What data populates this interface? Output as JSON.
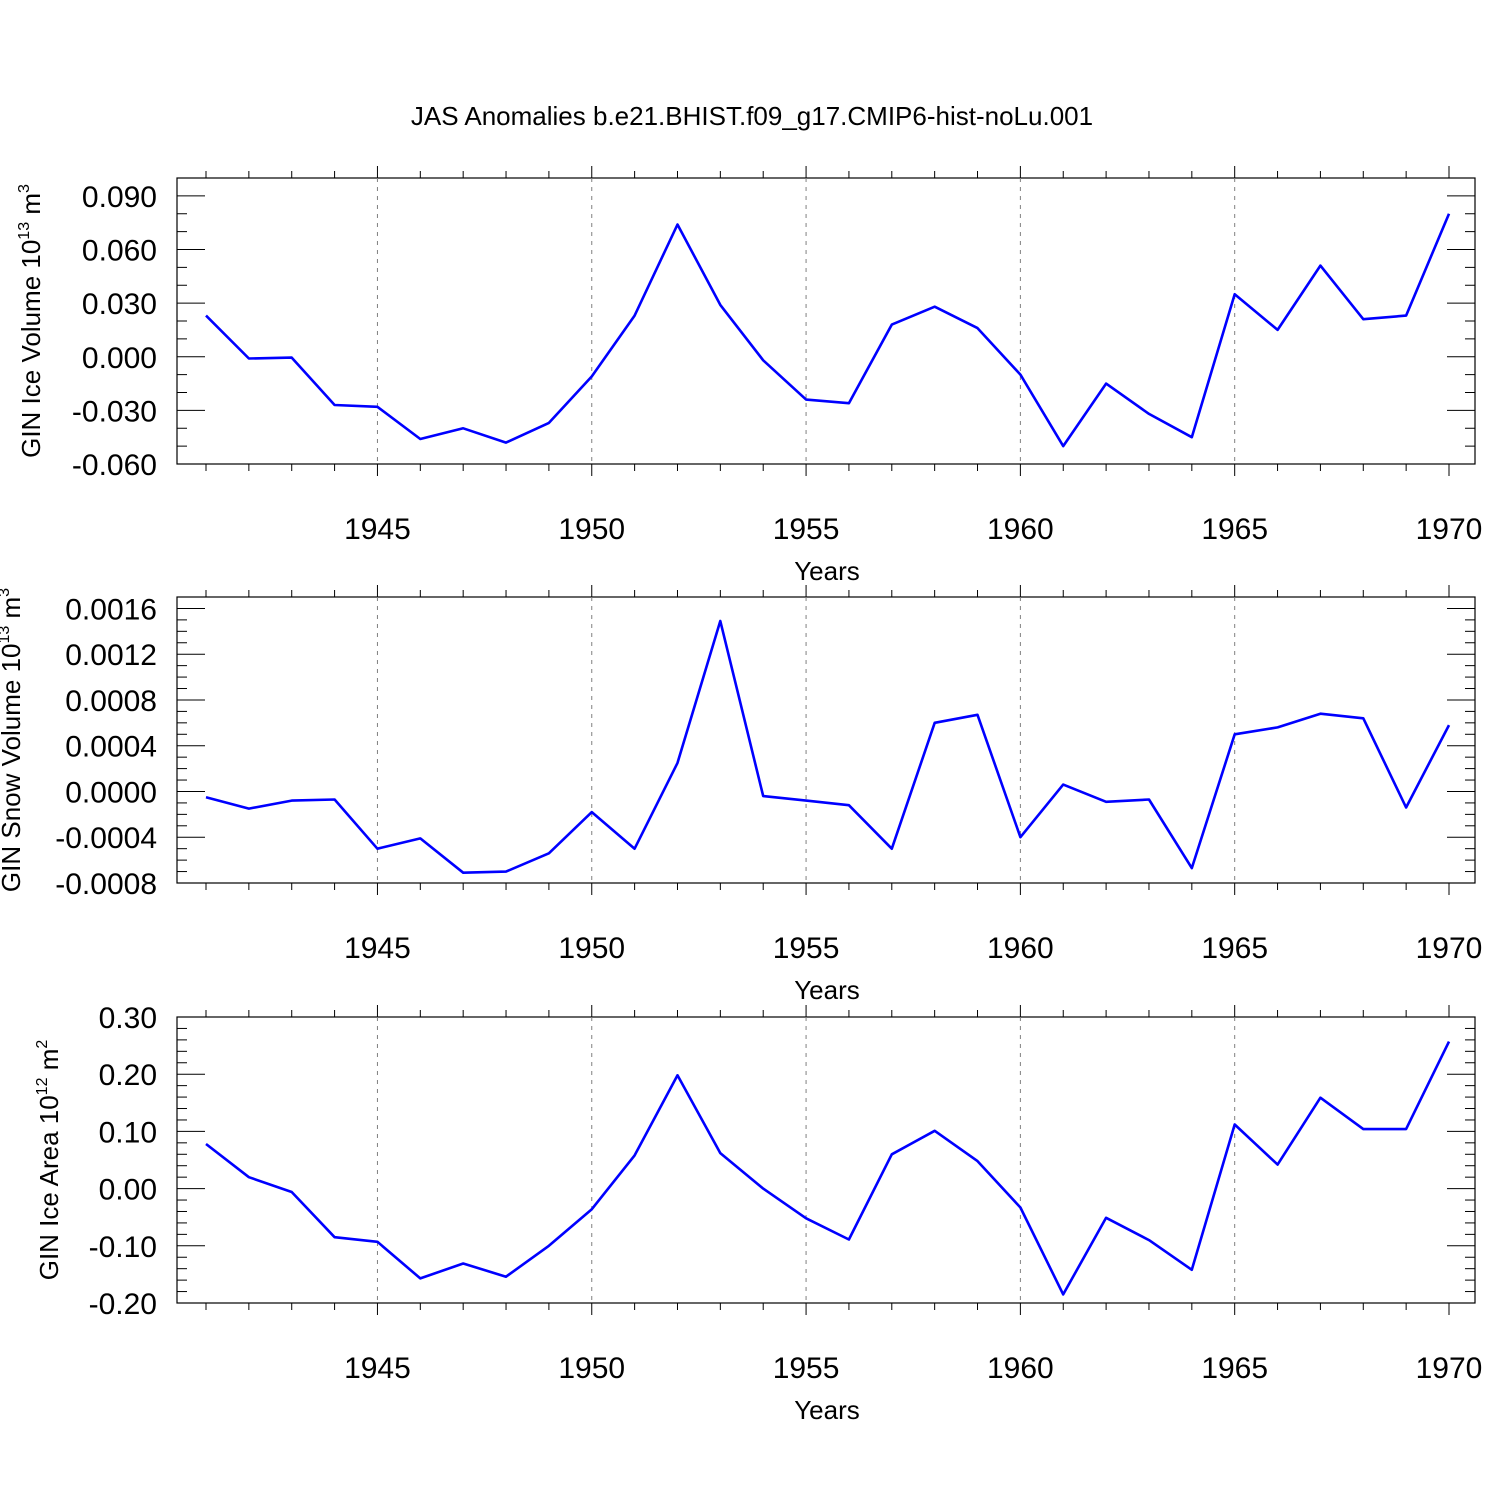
{
  "title": "JAS Anomalies b.e21.BHIST.f09_g17.CMIP6-hist-noLu.001",
  "line_color": "#0000ff",
  "grid_color": "#808080",
  "chart_data": [
    {
      "type": "line",
      "name": "ice-volume",
      "ylabel": "GIN Ice Volume 10",
      "ylabel_sup": "13",
      "ylabel_unit": " m",
      "ylabel_unit_sup": "3",
      "xlabel": "Years",
      "xlim": [
        1941,
        1970
      ],
      "ylim": [
        -0.06,
        0.1
      ],
      "yticks": [
        -0.06,
        -0.03,
        0.0,
        0.03,
        0.06,
        0.09
      ],
      "ytick_labels": [
        "-0.060",
        "-0.030",
        "0.000",
        "0.030",
        "0.060",
        "0.090"
      ],
      "yminor_step": 0.01,
      "xticks": [
        1945,
        1950,
        1955,
        1960,
        1965,
        1970
      ],
      "xtick_labels": [
        "1945",
        "1950",
        "1955",
        "1960",
        "1965",
        "1970"
      ],
      "x": [
        1941,
        1942,
        1943,
        1944,
        1945,
        1946,
        1947,
        1948,
        1949,
        1950,
        1951,
        1952,
        1953,
        1954,
        1955,
        1956,
        1957,
        1958,
        1959,
        1960,
        1961,
        1962,
        1963,
        1964,
        1965,
        1966,
        1967,
        1968,
        1969,
        1970
      ],
      "values": [
        0.023,
        -0.001,
        -0.0005,
        -0.027,
        -0.028,
        -0.046,
        -0.04,
        -0.048,
        -0.037,
        -0.011,
        0.023,
        0.074,
        0.029,
        -0.002,
        -0.024,
        -0.026,
        0.018,
        0.028,
        0.016,
        -0.01,
        -0.05,
        -0.015,
        -0.032,
        -0.045,
        0.035,
        0.015,
        0.051,
        0.021,
        0.023,
        0.08
      ]
    },
    {
      "type": "line",
      "name": "snow-volume",
      "ylabel": "GIN Snow Volume 10",
      "ylabel_sup": "13",
      "ylabel_unit": " m",
      "ylabel_unit_sup": "3",
      "xlabel": "Years",
      "xlim": [
        1941,
        1970
      ],
      "ylim": [
        -0.0008,
        0.0017
      ],
      "yticks": [
        -0.0008,
        -0.0004,
        0.0,
        0.0004,
        0.0008,
        0.0012,
        0.0016
      ],
      "ytick_labels": [
        "-0.0008",
        "-0.0004",
        "0.0000",
        "0.0004",
        "0.0008",
        "0.0012",
        "0.0016"
      ],
      "yminor_step": 0.0001,
      "xticks": [
        1945,
        1950,
        1955,
        1960,
        1965,
        1970
      ],
      "xtick_labels": [
        "1945",
        "1950",
        "1955",
        "1960",
        "1965",
        "1970"
      ],
      "x": [
        1941,
        1942,
        1943,
        1944,
        1945,
        1946,
        1947,
        1948,
        1949,
        1950,
        1951,
        1952,
        1953,
        1954,
        1955,
        1956,
        1957,
        1958,
        1959,
        1960,
        1961,
        1962,
        1963,
        1964,
        1965,
        1966,
        1967,
        1968,
        1969,
        1970
      ],
      "values": [
        -5e-05,
        -0.00015,
        -8e-05,
        -7e-05,
        -0.0005,
        -0.00041,
        -0.00071,
        -0.0007,
        -0.00054,
        -0.00018,
        -0.0005,
        0.00025,
        0.00149,
        -4e-05,
        -8e-05,
        -0.00012,
        -0.0005,
        0.0006,
        0.00067,
        -0.0004,
        6e-05,
        -9e-05,
        -7e-05,
        -0.00067,
        0.0005,
        0.00056,
        0.00068,
        0.00064,
        -0.00014,
        0.00058
      ]
    },
    {
      "type": "line",
      "name": "ice-area",
      "ylabel": "GIN Ice Area 10",
      "ylabel_sup": "12",
      "ylabel_unit": " m",
      "ylabel_unit_sup": "2",
      "xlabel": "Years",
      "xlim": [
        1941,
        1970
      ],
      "ylim": [
        -0.2,
        0.3
      ],
      "yticks": [
        -0.2,
        -0.1,
        0.0,
        0.1,
        0.2,
        0.3
      ],
      "ytick_labels": [
        "-0.20",
        "-0.10",
        "0.00",
        "0.10",
        "0.20",
        "0.30"
      ],
      "yminor_step": 0.02,
      "xticks": [
        1945,
        1950,
        1955,
        1960,
        1965,
        1970
      ],
      "xtick_labels": [
        "1945",
        "1950",
        "1955",
        "1960",
        "1965",
        "1970"
      ],
      "x": [
        1941,
        1942,
        1943,
        1944,
        1945,
        1946,
        1947,
        1948,
        1949,
        1950,
        1951,
        1952,
        1953,
        1954,
        1955,
        1956,
        1957,
        1958,
        1959,
        1960,
        1961,
        1962,
        1963,
        1964,
        1965,
        1966,
        1967,
        1968,
        1969,
        1970
      ],
      "values": [
        0.078,
        0.02,
        -0.006,
        -0.085,
        -0.093,
        -0.157,
        -0.131,
        -0.154,
        -0.1,
        -0.036,
        0.058,
        0.198,
        0.062,
        0.0,
        -0.052,
        -0.089,
        0.06,
        0.101,
        0.048,
        -0.033,
        -0.185,
        -0.051,
        -0.09,
        -0.142,
        0.112,
        0.042,
        0.159,
        0.104,
        0.104,
        0.257
      ]
    }
  ]
}
